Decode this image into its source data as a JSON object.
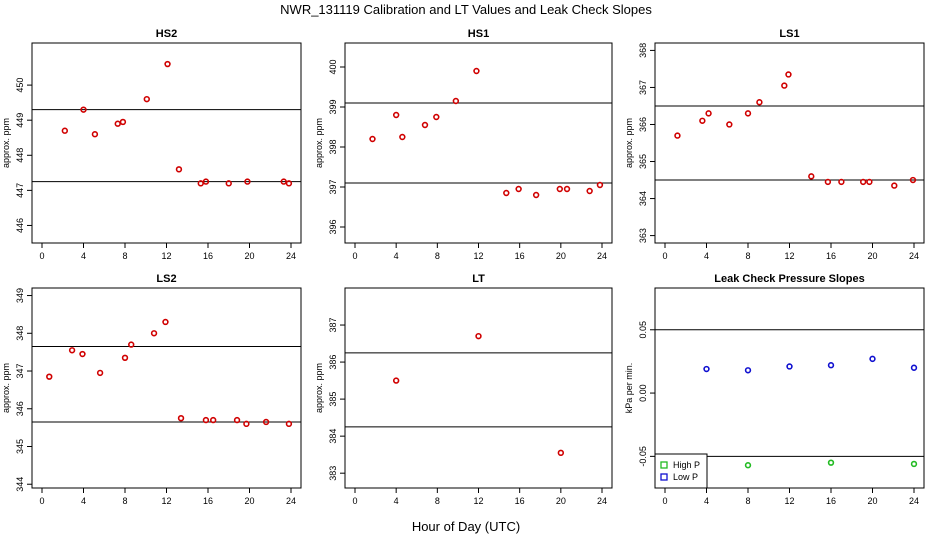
{
  "title": "NWR_131119  Calibration and LT Values and Leak Check Slopes",
  "xlabel": "Hour of Day (UTC)",
  "chart_data": [
    {
      "type": "scatter",
      "title": "HS2",
      "ylabel": "approx. ppm",
      "xlim": [
        0,
        24
      ],
      "xticks": [
        0,
        4,
        8,
        12,
        16,
        20,
        24
      ],
      "ylim": [
        445.5,
        451.2
      ],
      "yticks": [
        446,
        447,
        448,
        449,
        450
      ],
      "hlines": [
        449.3,
        447.25
      ],
      "series": [
        {
          "color": "#d00000",
          "x": [
            2.2,
            4.0,
            5.1,
            7.3,
            7.8,
            10.1,
            12.1,
            13.2,
            15.3,
            15.8,
            18.0,
            19.8,
            23.3,
            23.8
          ],
          "y": [
            448.7,
            449.3,
            448.6,
            448.9,
            448.95,
            449.6,
            450.6,
            447.6,
            447.2,
            447.25,
            447.2,
            447.25,
            447.25,
            447.2
          ]
        }
      ]
    },
    {
      "type": "scatter",
      "title": "HS1",
      "ylabel": "approx. ppm",
      "xlim": [
        0,
        24
      ],
      "xticks": [
        0,
        4,
        8,
        12,
        16,
        20,
        24
      ],
      "ylim": [
        395.6,
        400.6
      ],
      "yticks": [
        396,
        397,
        398,
        399,
        400
      ],
      "hlines": [
        399.1,
        397.1
      ],
      "series": [
        {
          "color": "#d00000",
          "x": [
            1.7,
            4.0,
            4.6,
            6.8,
            7.9,
            9.8,
            11.8,
            14.7,
            15.9,
            17.6,
            19.9,
            20.6,
            22.8,
            23.8
          ],
          "y": [
            398.2,
            398.8,
            398.25,
            398.55,
            398.75,
            399.15,
            399.9,
            396.85,
            396.95,
            396.8,
            396.95,
            396.95,
            396.9,
            397.05
          ]
        }
      ]
    },
    {
      "type": "scatter",
      "title": "LS1",
      "ylabel": "approx. ppm",
      "xlim": [
        0,
        24
      ],
      "xticks": [
        0,
        4,
        8,
        12,
        16,
        20,
        24
      ],
      "ylim": [
        362.8,
        368.2
      ],
      "yticks": [
        363,
        364,
        365,
        366,
        367,
        368
      ],
      "hlines": [
        366.5,
        364.5
      ],
      "series": [
        {
          "color": "#d00000",
          "x": [
            1.2,
            3.6,
            4.2,
            6.2,
            8.0,
            9.1,
            11.5,
            11.9,
            14.1,
            15.7,
            17.0,
            19.1,
            19.7,
            22.1,
            23.9
          ],
          "y": [
            365.7,
            366.1,
            366.3,
            366.0,
            366.3,
            366.6,
            367.05,
            367.35,
            364.6,
            364.45,
            364.45,
            364.45,
            364.45,
            364.35,
            364.5
          ]
        }
      ]
    },
    {
      "type": "scatter",
      "title": "LS2",
      "ylabel": "approx. ppm",
      "xlim": [
        0,
        24
      ],
      "xticks": [
        0,
        4,
        8,
        12,
        16,
        20,
        24
      ],
      "ylim": [
        343.9,
        349.2
      ],
      "yticks": [
        344,
        345,
        346,
        347,
        348,
        349
      ],
      "hlines": [
        347.65,
        345.65
      ],
      "series": [
        {
          "color": "#d00000",
          "x": [
            0.7,
            2.9,
            3.9,
            5.6,
            8.0,
            8.6,
            10.8,
            11.9,
            13.4,
            15.8,
            16.5,
            18.8,
            19.7,
            21.6,
            23.8
          ],
          "y": [
            346.85,
            347.55,
            347.45,
            346.95,
            347.35,
            347.7,
            348.0,
            348.3,
            345.75,
            345.7,
            345.7,
            345.7,
            345.6,
            345.65,
            345.6
          ]
        }
      ]
    },
    {
      "type": "scatter",
      "title": "LT",
      "ylabel": "approx. ppm",
      "xlim": [
        0,
        24
      ],
      "xticks": [
        0,
        4,
        8,
        12,
        16,
        20,
        24
      ],
      "ylim": [
        382.6,
        388.0
      ],
      "yticks": [
        383,
        384,
        385,
        386,
        387
      ],
      "hlines": [
        386.25,
        384.25
      ],
      "series": [
        {
          "color": "#d00000",
          "x": [
            4.0,
            12.0,
            20.0
          ],
          "y": [
            385.5,
            386.7,
            383.55
          ]
        }
      ]
    },
    {
      "type": "scatter",
      "title": "Leak Check Pressure Slopes",
      "ylabel": "kPa per min.",
      "xlim": [
        0,
        24
      ],
      "xticks": [
        0,
        4,
        8,
        12,
        16,
        20,
        24
      ],
      "ylim": [
        -0.075,
        0.083
      ],
      "yticks": [
        -0.05,
        0.0,
        0.05
      ],
      "ytick_labels": [
        "-0.05",
        "0.00",
        "0.05"
      ],
      "hlines": [
        0.05,
        -0.05
      ],
      "legend": {
        "position": "bottom-left",
        "entries": [
          "High P",
          "Low P"
        ]
      },
      "series": [
        {
          "name": "High P",
          "color": "#22bb22",
          "x": [
            8.0,
            16.0,
            24.0
          ],
          "y": [
            -0.057,
            -0.055,
            -0.056
          ]
        },
        {
          "name": "Low P",
          "color": "#1010d0",
          "x": [
            4.0,
            8.0,
            12.0,
            16.0,
            20.0,
            24.0
          ],
          "y": [
            0.019,
            0.018,
            0.021,
            0.022,
            0.027,
            0.02
          ]
        }
      ]
    }
  ]
}
